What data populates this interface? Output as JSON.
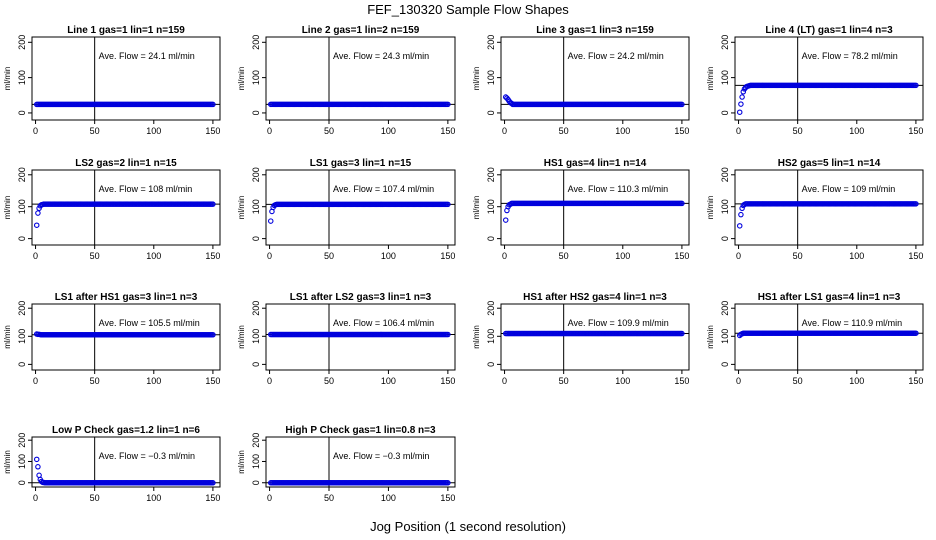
{
  "title": "FEF_130320  Sample Flow Shapes",
  "xlabel": "Jog Position (1 second resolution)",
  "chart_data": [
    {
      "type": "scatter",
      "title": "Line 1 gas=1 lin=1 n=159",
      "ylabel": "ml/min",
      "annotation": "Ave. Flow =  24.1  ml/min",
      "level": 24.1,
      "transient": [],
      "hline": 24.1,
      "vline": 50,
      "xlim": [
        -3,
        156
      ],
      "ylim": [
        -20,
        215
      ],
      "xticks": [
        0,
        50,
        100,
        150
      ],
      "yticks": [
        0,
        100,
        200
      ],
      "n": 150
    },
    {
      "type": "scatter",
      "title": "Line 2 gas=1 lin=2 n=159",
      "ylabel": "ml/min",
      "annotation": "Ave. Flow =  24.3  ml/min",
      "level": 24.3,
      "transient": [],
      "hline": 24.3,
      "vline": 50,
      "xlim": [
        -3,
        156
      ],
      "ylim": [
        -20,
        215
      ],
      "xticks": [
        0,
        50,
        100,
        150
      ],
      "yticks": [
        0,
        100,
        200
      ],
      "n": 150
    },
    {
      "type": "scatter",
      "title": "Line 3 gas=1 lin=3 n=159",
      "ylabel": "ml/min",
      "annotation": "Ave. Flow =  24.2  ml/min",
      "level": 24.2,
      "transient": [
        [
          1,
          45
        ],
        [
          2,
          42
        ],
        [
          3,
          38
        ],
        [
          4,
          33
        ],
        [
          5,
          29
        ],
        [
          6,
          27
        ]
      ],
      "hline": 24.2,
      "vline": 50,
      "xlim": [
        -3,
        156
      ],
      "ylim": [
        -20,
        215
      ],
      "xticks": [
        0,
        50,
        100,
        150
      ],
      "yticks": [
        0,
        100,
        200
      ],
      "n": 150
    },
    {
      "type": "scatter",
      "title": "Line 4 (LT) gas=1 lin=4 n=3",
      "ylabel": "ml/min",
      "annotation": "Ave. Flow =  78.2  ml/min",
      "level": 78.2,
      "transient": [
        [
          1,
          2
        ],
        [
          2,
          25
        ],
        [
          3,
          45
        ],
        [
          4,
          60
        ],
        [
          5,
          68
        ],
        [
          6,
          72
        ],
        [
          7,
          75
        ],
        [
          8,
          76
        ],
        [
          9,
          77
        ],
        [
          10,
          78
        ]
      ],
      "hline": 78.2,
      "vline": 50,
      "xlim": [
        -3,
        156
      ],
      "ylim": [
        -20,
        215
      ],
      "xticks": [
        0,
        50,
        100,
        150
      ],
      "yticks": [
        0,
        100,
        200
      ],
      "n": 150
    },
    {
      "type": "scatter",
      "title": "LS2 gas=2 lin=1 n=15",
      "ylabel": "ml/min",
      "annotation": "Ave. Flow =  108  ml/min",
      "level": 108,
      "transient": [
        [
          1,
          42
        ],
        [
          2,
          80
        ],
        [
          3,
          95
        ],
        [
          4,
          103
        ],
        [
          5,
          106
        ],
        [
          6,
          107
        ]
      ],
      "hline": 108,
      "vline": 50,
      "xlim": [
        -3,
        156
      ],
      "ylim": [
        -20,
        215
      ],
      "xticks": [
        0,
        50,
        100,
        150
      ],
      "yticks": [
        0,
        100,
        200
      ],
      "n": 150
    },
    {
      "type": "scatter",
      "title": "LS1 gas=3 lin=1 n=15",
      "ylabel": "ml/min",
      "annotation": "Ave. Flow =  107.4  ml/min",
      "level": 107.4,
      "transient": [
        [
          1,
          55
        ],
        [
          2,
          85
        ],
        [
          3,
          98
        ],
        [
          4,
          104
        ],
        [
          5,
          106
        ]
      ],
      "hline": 107.4,
      "vline": 50,
      "xlim": [
        -3,
        156
      ],
      "ylim": [
        -20,
        215
      ],
      "xticks": [
        0,
        50,
        100,
        150
      ],
      "yticks": [
        0,
        100,
        200
      ],
      "n": 150
    },
    {
      "type": "scatter",
      "title": "HS1 gas=4 lin=1 n=14",
      "ylabel": "ml/min",
      "annotation": "Ave. Flow =  110.3  ml/min",
      "level": 110.3,
      "transient": [
        [
          1,
          58
        ],
        [
          2,
          88
        ],
        [
          3,
          100
        ],
        [
          4,
          106
        ],
        [
          5,
          108
        ]
      ],
      "hline": 110.3,
      "vline": 50,
      "xlim": [
        -3,
        156
      ],
      "ylim": [
        -20,
        215
      ],
      "xticks": [
        0,
        50,
        100,
        150
      ],
      "yticks": [
        0,
        100,
        200
      ],
      "n": 150
    },
    {
      "type": "scatter",
      "title": "HS2 gas=5 lin=1 n=14",
      "ylabel": "ml/min",
      "annotation": "Ave. Flow =  109  ml/min",
      "level": 109,
      "transient": [
        [
          1,
          40
        ],
        [
          2,
          75
        ],
        [
          3,
          95
        ],
        [
          4,
          104
        ],
        [
          5,
          107
        ]
      ],
      "hline": 109,
      "vline": 50,
      "xlim": [
        -3,
        156
      ],
      "ylim": [
        -20,
        215
      ],
      "xticks": [
        0,
        50,
        100,
        150
      ],
      "yticks": [
        0,
        100,
        200
      ],
      "n": 150
    },
    {
      "type": "scatter",
      "title": "LS1 after HS1 gas=3 lin=1 n=3",
      "ylabel": "ml/min",
      "annotation": "Ave. Flow =  105.5  ml/min",
      "level": 105.5,
      "transient": [
        [
          1,
          108
        ],
        [
          2,
          107
        ],
        [
          3,
          107
        ],
        [
          4,
          106
        ]
      ],
      "hline": 105.5,
      "vline": 50,
      "xlim": [
        -3,
        156
      ],
      "ylim": [
        -20,
        215
      ],
      "xticks": [
        0,
        50,
        100,
        150
      ],
      "yticks": [
        0,
        100,
        200
      ],
      "n": 150
    },
    {
      "type": "scatter",
      "title": "LS1 after LS2 gas=3 lin=1 n=3",
      "ylabel": "ml/min",
      "annotation": "Ave. Flow =  106.4  ml/min",
      "level": 106.4,
      "transient": [],
      "hline": 106.4,
      "vline": 50,
      "xlim": [
        -3,
        156
      ],
      "ylim": [
        -20,
        215
      ],
      "xticks": [
        0,
        50,
        100,
        150
      ],
      "yticks": [
        0,
        100,
        200
      ],
      "n": 150
    },
    {
      "type": "scatter",
      "title": "HS1 after HS2 gas=4 lin=1 n=3",
      "ylabel": "ml/min",
      "annotation": "Ave. Flow =  109.9  ml/min",
      "level": 109.9,
      "transient": [],
      "hline": 109.9,
      "vline": 50,
      "xlim": [
        -3,
        156
      ],
      "ylim": [
        -20,
        215
      ],
      "xticks": [
        0,
        50,
        100,
        150
      ],
      "yticks": [
        0,
        100,
        200
      ],
      "n": 150
    },
    {
      "type": "scatter",
      "title": "HS1 after LS1 gas=4 lin=1 n=3",
      "ylabel": "ml/min",
      "annotation": "Ave. Flow =  110.9  ml/min",
      "level": 110.9,
      "transient": [
        [
          1,
          103
        ],
        [
          2,
          107
        ],
        [
          3,
          109
        ]
      ],
      "hline": 110.9,
      "vline": 50,
      "xlim": [
        -3,
        156
      ],
      "ylim": [
        -20,
        215
      ],
      "xticks": [
        0,
        50,
        100,
        150
      ],
      "yticks": [
        0,
        100,
        200
      ],
      "n": 150
    },
    {
      "type": "scatter",
      "title": "Low P Check gas=1.2 lin=1 n=6",
      "ylabel": "ml/min",
      "annotation": "Ave. Flow =  −0.3  ml/min",
      "level": -0.3,
      "transient": [
        [
          1,
          110
        ],
        [
          2,
          75
        ],
        [
          3,
          35
        ],
        [
          4,
          15
        ],
        [
          5,
          6
        ],
        [
          6,
          2
        ],
        [
          7,
          1
        ]
      ],
      "hline": -0.3,
      "vline": 50,
      "xlim": [
        -3,
        156
      ],
      "ylim": [
        -20,
        215
      ],
      "xticks": [
        0,
        50,
        100,
        150
      ],
      "yticks": [
        0,
        100,
        200
      ],
      "n": 150
    },
    {
      "type": "scatter",
      "title": "High P Check gas=1 lin=0.8 n=3",
      "ylabel": "ml/min",
      "annotation": "Ave. Flow =  −0.3  ml/min",
      "level": -0.3,
      "transient": [],
      "hline": -0.3,
      "vline": 50,
      "xlim": [
        -3,
        156
      ],
      "ylim": [
        -20,
        215
      ],
      "xticks": [
        0,
        50,
        100,
        150
      ],
      "yticks": [
        0,
        100,
        200
      ],
      "n": 150
    }
  ],
  "colors": {
    "points": "#0000dd",
    "axes": "#000000"
  }
}
